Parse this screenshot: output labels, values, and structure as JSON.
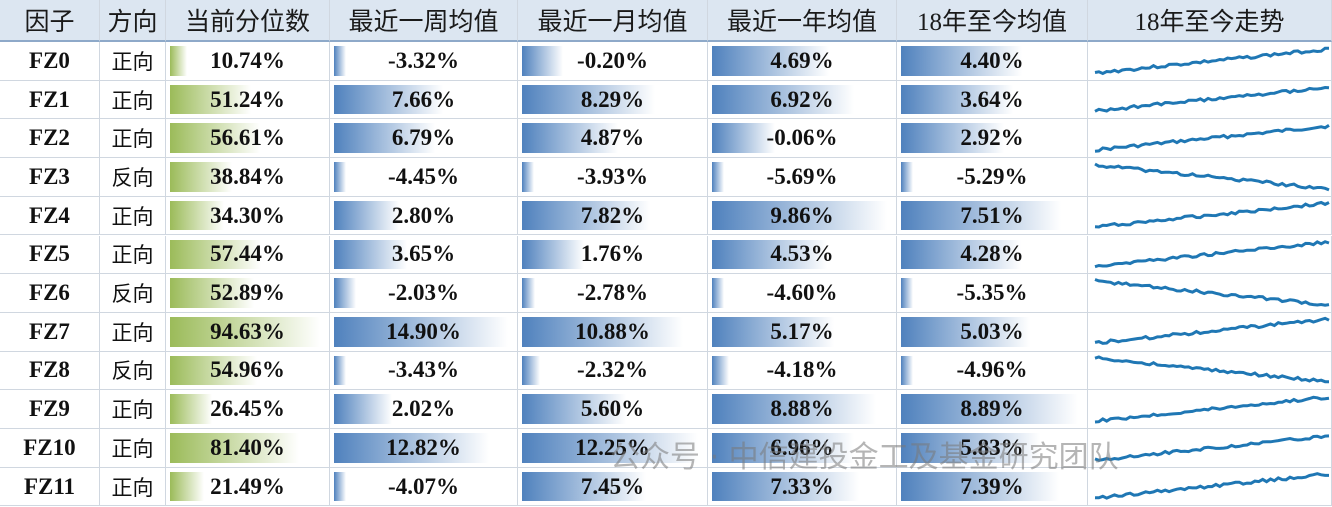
{
  "header": [
    "因子",
    "方向",
    "当前分位数",
    "最近一周均值",
    "最近一月均值",
    "最近一年均值",
    "18年至今均值",
    "18年至今走势"
  ],
  "rows": [
    [
      "FZ0",
      "正向",
      "10.74%",
      "-3.32%",
      "-0.20%",
      "4.69%",
      "4.40%"
    ],
    [
      "FZ1",
      "正向",
      "51.24%",
      "7.66%",
      "8.29%",
      "6.92%",
      "3.64%"
    ],
    [
      "FZ2",
      "正向",
      "56.61%",
      "6.79%",
      "4.87%",
      "-0.06%",
      "2.92%"
    ],
    [
      "FZ3",
      "反向",
      "38.84%",
      "-4.45%",
      "-3.93%",
      "-5.69%",
      "-5.29%"
    ],
    [
      "FZ4",
      "正向",
      "34.30%",
      "2.80%",
      "7.82%",
      "9.86%",
      "7.51%"
    ],
    [
      "FZ5",
      "正向",
      "57.44%",
      "3.65%",
      "1.76%",
      "4.53%",
      "4.28%"
    ],
    [
      "FZ6",
      "反向",
      "52.89%",
      "-2.03%",
      "-2.78%",
      "-4.60%",
      "-5.35%"
    ],
    [
      "FZ7",
      "正向",
      "94.63%",
      "14.90%",
      "10.88%",
      "5.17%",
      "5.03%"
    ],
    [
      "FZ8",
      "反向",
      "54.96%",
      "-3.43%",
      "-2.32%",
      "-4.18%",
      "-4.96%"
    ],
    [
      "FZ9",
      "正向",
      "26.45%",
      "2.02%",
      "5.60%",
      "8.88%",
      "8.89%"
    ],
    [
      "FZ10",
      "正向",
      "81.40%",
      "12.82%",
      "12.25%",
      "6.96%",
      "5.83%"
    ],
    [
      "FZ11",
      "正向",
      "21.49%",
      "-4.07%",
      "7.45%",
      "7.33%",
      "7.39%"
    ]
  ],
  "watermark": "公众号 · 中信建投金工及基金研究团队"
}
